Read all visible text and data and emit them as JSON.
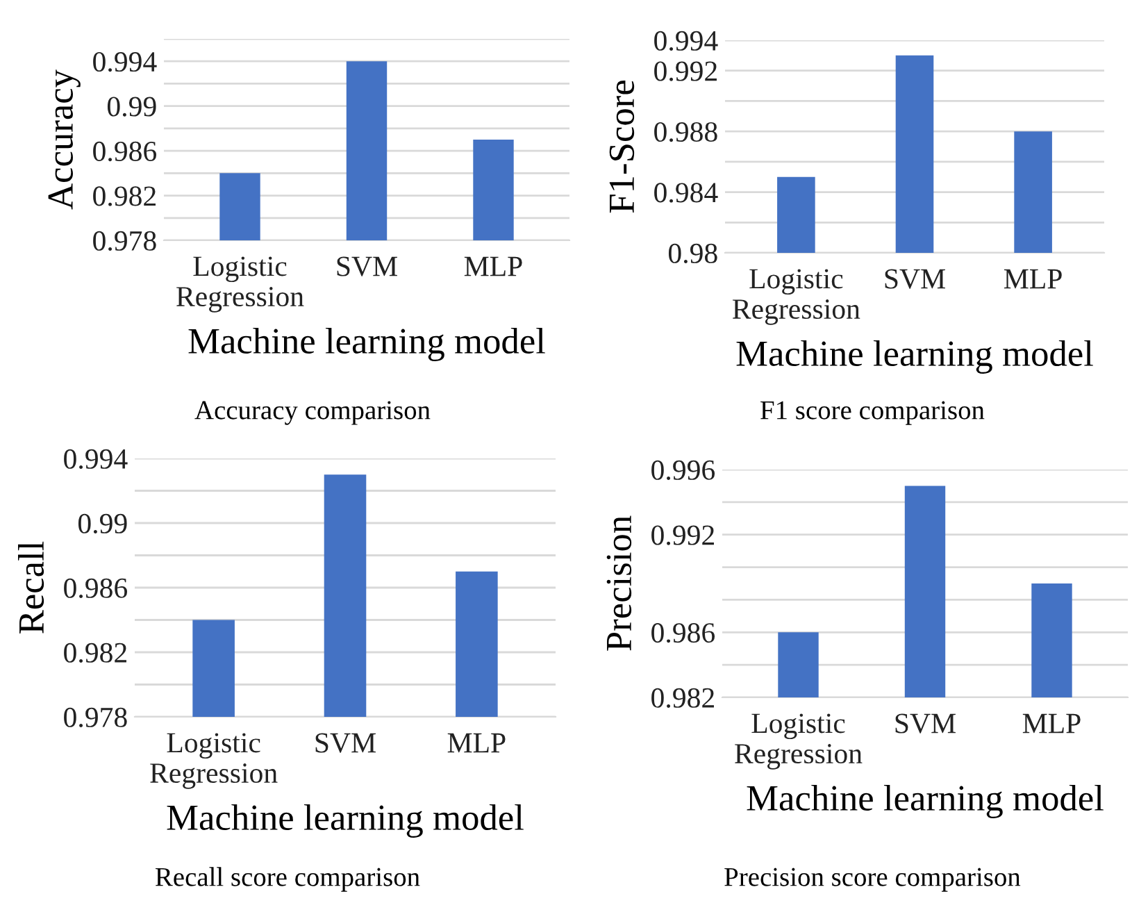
{
  "chart_data": [
    {
      "type": "bar",
      "categories": [
        "Logistic\nRegression",
        "SVM",
        "MLP"
      ],
      "values": [
        0.984,
        0.994,
        0.987
      ],
      "color": "#4472c4",
      "xlabel": "Machine learning model",
      "ylabel": "Accuracy",
      "ylim": [
        0.978,
        0.996
      ],
      "yticks": [
        0.978,
        {
          "value": 0.98,
          "label": null
        },
        0.982,
        {
          "value": 0.984,
          "label": null
        },
        0.986,
        {
          "value": 0.988,
          "label": null
        },
        0.99,
        {
          "value": 0.992,
          "label": null
        },
        0.994,
        {
          "value": 0.996,
          "label": null
        }
      ],
      "grid": "y",
      "annotations": [
        "Accuracy comparison"
      ]
    },
    {
      "type": "bar",
      "categories": [
        "Logistic\nRegression",
        "SVM",
        "MLP"
      ],
      "values": [
        0.985,
        0.993,
        0.988
      ],
      "color": "#4472c4",
      "xlabel": "Machine learning model",
      "ylabel": "F1-Score",
      "ylim": [
        0.98,
        0.994
      ],
      "yticks": [
        0.98,
        {
          "value": 0.982,
          "label": null
        },
        0.984,
        {
          "value": 0.986,
          "label": null
        },
        0.988,
        {
          "value": 0.99,
          "label": null
        },
        0.992,
        0.994
      ],
      "grid": "y",
      "annotations": [
        "F1 score comparison"
      ]
    },
    {
      "type": "bar",
      "categories": [
        "Logistic\nRegression",
        "SVM",
        "MLP"
      ],
      "values": [
        0.984,
        0.993,
        0.987
      ],
      "color": "#4472c4",
      "xlabel": "Machine learning model",
      "ylabel": "Recall",
      "ylim": [
        0.978,
        0.994
      ],
      "yticks": [
        0.978,
        {
          "value": 0.98,
          "label": null
        },
        0.982,
        {
          "value": 0.984,
          "label": null
        },
        0.986,
        {
          "value": 0.988,
          "label": null
        },
        0.99,
        {
          "value": 0.992,
          "label": null
        },
        0.994
      ],
      "grid": "y",
      "annotations": [
        "Recall score comparison"
      ]
    },
    {
      "type": "bar",
      "categories": [
        "Logistic\nRegression",
        "SVM",
        "MLP"
      ],
      "values": [
        0.986,
        0.995,
        0.989
      ],
      "color": "#4472c4",
      "xlabel": "Machine learning model",
      "ylabel": "Precision",
      "ylim": [
        0.982,
        0.996
      ],
      "yticks": [
        0.982,
        {
          "value": 0.984,
          "label": null
        },
        0.986,
        {
          "value": 0.988,
          "label": null
        },
        {
          "value": 0.99,
          "label": null
        },
        0.992,
        {
          "value": 0.994,
          "label": null
        },
        0.996
      ],
      "grid": "y",
      "annotations": [
        "Precision score comparison"
      ]
    }
  ]
}
